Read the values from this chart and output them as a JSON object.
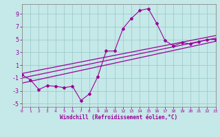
{
  "bg_color": "#c5e8e8",
  "line_color": "#990099",
  "grid_color": "#a0cccc",
  "xlabel": "Windchill (Refroidissement éolien,°C)",
  "xlim": [
    0,
    23
  ],
  "ylim": [
    -5.5,
    10.5
  ],
  "xticks": [
    0,
    1,
    2,
    3,
    4,
    5,
    6,
    7,
    8,
    9,
    10,
    11,
    12,
    13,
    14,
    15,
    16,
    17,
    18,
    19,
    20,
    21,
    22,
    23
  ],
  "yticks": [
    -5,
    -3,
    -1,
    1,
    3,
    5,
    7,
    9
  ],
  "main_x": [
    0,
    1,
    2,
    3,
    4,
    5,
    6,
    7,
    8,
    9,
    10,
    11,
    12,
    13,
    14,
    15,
    16,
    17,
    18,
    19,
    20,
    21,
    22,
    23
  ],
  "main_y": [
    -0.5,
    -1.3,
    -2.8,
    -2.2,
    -2.3,
    -2.5,
    -2.3,
    -4.5,
    -3.5,
    -0.8,
    3.2,
    3.2,
    6.7,
    8.3,
    9.5,
    9.8,
    7.5,
    4.8,
    4.0,
    4.5,
    4.3,
    4.6,
    5.0,
    5.0
  ],
  "reg_lines": [
    {
      "x0": 0,
      "y0": -1.8,
      "x1": 23,
      "y1": 4.7
    },
    {
      "x0": 0,
      "y0": -1.0,
      "x1": 23,
      "y1": 5.2
    },
    {
      "x0": 0,
      "y0": -0.3,
      "x1": 23,
      "y1": 5.6
    }
  ]
}
